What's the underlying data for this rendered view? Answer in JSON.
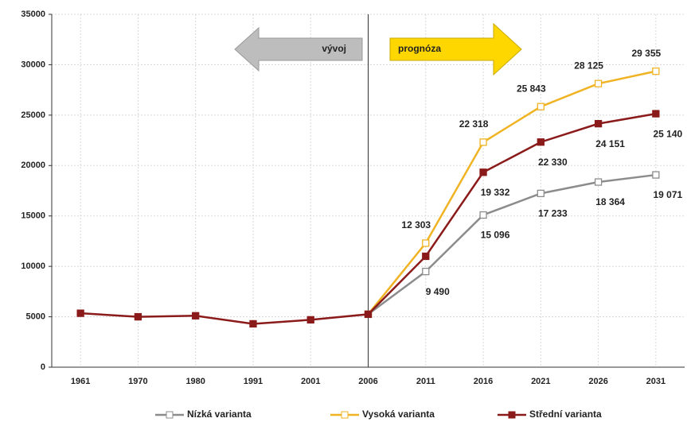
{
  "chart_data": {
    "type": "line",
    "categories": [
      "1961",
      "1970",
      "1980",
      "1991",
      "2001",
      "2006",
      "2011",
      "2016",
      "2021",
      "2026",
      "2031"
    ],
    "series": [
      {
        "name": "Nízká varianta",
        "color": "#8c8c8c",
        "marker": "open-square",
        "values": [
          null,
          null,
          null,
          null,
          null,
          5250,
          9490,
          15096,
          17233,
          18364,
          19071
        ],
        "value_labels": [
          null,
          null,
          null,
          null,
          null,
          null,
          "9 490",
          "15 096",
          "17 233",
          "18 364",
          "19 071"
        ]
      },
      {
        "name": "Vysoká varianta",
        "color": "#f0b323",
        "marker": "open-square",
        "values": [
          null,
          null,
          null,
          null,
          null,
          5250,
          12303,
          22318,
          25843,
          28125,
          29355
        ],
        "value_labels": [
          null,
          null,
          null,
          null,
          null,
          null,
          "12 303",
          "22 318",
          "25 843",
          "28 125",
          "29 355"
        ]
      },
      {
        "name": "Střední varianta",
        "color": "#8b1a1a",
        "marker": "filled-square",
        "values": [
          5350,
          5000,
          5100,
          4300,
          4700,
          5250,
          11000,
          19332,
          22330,
          24151,
          25140
        ],
        "value_labels": [
          null,
          null,
          null,
          null,
          null,
          null,
          null,
          "19 332",
          "22 330",
          "24 151",
          "25 140"
        ]
      }
    ],
    "ylim": [
      0,
      35000
    ],
    "yticks": [
      0,
      5000,
      10000,
      15000,
      20000,
      25000,
      30000,
      35000
    ],
    "grid": true,
    "legend": "bottom",
    "annotations": [
      "vývoj",
      "prognóza"
    ]
  }
}
